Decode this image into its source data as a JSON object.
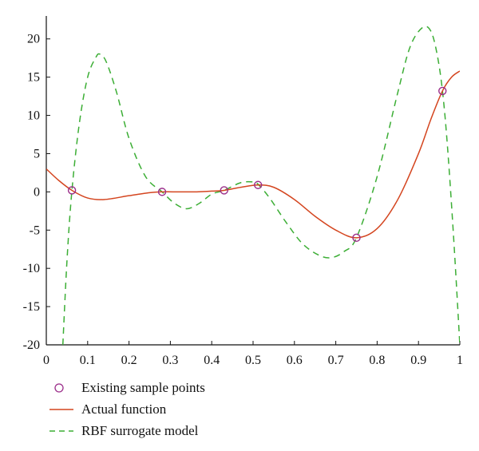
{
  "chart_data": {
    "type": "line",
    "title": "",
    "xlabel": "",
    "ylabel": "",
    "xlim": [
      0,
      1
    ],
    "ylim": [
      -20,
      23
    ],
    "x_ticks": [
      "0",
      "0.1",
      "0.2",
      "0.3",
      "0.4",
      "0.5",
      "0.6",
      "0.7",
      "0.8",
      "0.9",
      "1"
    ],
    "y_ticks": [
      "-20",
      "-15",
      "-10",
      "-5",
      "0",
      "5",
      "10",
      "15",
      "20"
    ],
    "grid": false,
    "legend_position": "below",
    "series": [
      {
        "name": "Existing sample points",
        "kind": "scatter",
        "color": "#9b2d8a",
        "x": [
          0.062,
          0.28,
          0.43,
          0.512,
          0.75,
          0.958
        ],
        "y": [
          0.2,
          0.0,
          0.2,
          0.9,
          -6.0,
          13.2
        ]
      },
      {
        "name": "Actual function",
        "kind": "line",
        "color": "#d4451f",
        "x": [
          0.0,
          0.03,
          0.062,
          0.1,
          0.14,
          0.2,
          0.25,
          0.28,
          0.32,
          0.36,
          0.4,
          0.43,
          0.47,
          0.512,
          0.55,
          0.6,
          0.65,
          0.7,
          0.75,
          0.8,
          0.85,
          0.9,
          0.93,
          0.958,
          0.98,
          1.0
        ],
        "y": [
          3.0,
          1.5,
          0.2,
          -0.8,
          -1.0,
          -0.5,
          -0.1,
          0.0,
          0.0,
          0.0,
          0.1,
          0.2,
          0.6,
          0.9,
          0.6,
          -1.0,
          -3.2,
          -5.0,
          -6.0,
          -4.8,
          -1.0,
          5.0,
          9.5,
          13.2,
          15.0,
          15.8
        ]
      },
      {
        "name": "RBF surrogate model",
        "kind": "line",
        "dashed": true,
        "color": "#3cae35",
        "x": [
          0.04,
          0.05,
          0.062,
          0.08,
          0.1,
          0.12,
          0.13,
          0.145,
          0.17,
          0.2,
          0.24,
          0.28,
          0.31,
          0.34,
          0.37,
          0.4,
          0.43,
          0.47,
          0.5,
          0.512,
          0.54,
          0.58,
          0.62,
          0.66,
          0.69,
          0.72,
          0.75,
          0.8,
          0.85,
          0.88,
          0.91,
          0.93,
          0.945,
          0.958,
          0.97,
          0.985,
          1.0
        ],
        "y": [
          -20.0,
          -9.0,
          0.2,
          9.0,
          15.0,
          17.6,
          18.0,
          17.0,
          13.0,
          7.0,
          2.0,
          0.0,
          -1.5,
          -2.2,
          -1.5,
          -0.3,
          0.2,
          1.2,
          1.3,
          1.0,
          -0.8,
          -4.0,
          -6.8,
          -8.3,
          -8.6,
          -7.8,
          -6.0,
          2.0,
          13.0,
          19.0,
          21.5,
          21.0,
          18.0,
          13.2,
          6.0,
          -6.0,
          -20.0
        ]
      }
    ]
  }
}
